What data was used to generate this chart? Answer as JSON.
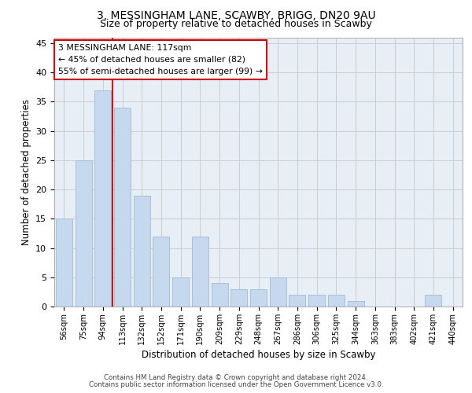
{
  "title1": "3, MESSINGHAM LANE, SCAWBY, BRIGG, DN20 9AU",
  "title2": "Size of property relative to detached houses in Scawby",
  "xlabel": "Distribution of detached houses by size in Scawby",
  "ylabel": "Number of detached properties",
  "categories": [
    "56sqm",
    "75sqm",
    "94sqm",
    "113sqm",
    "132sqm",
    "152sqm",
    "171sqm",
    "190sqm",
    "209sqm",
    "229sqm",
    "248sqm",
    "267sqm",
    "286sqm",
    "306sqm",
    "325sqm",
    "344sqm",
    "363sqm",
    "383sqm",
    "402sqm",
    "421sqm",
    "440sqm"
  ],
  "values": [
    15,
    25,
    37,
    34,
    19,
    12,
    5,
    12,
    4,
    3,
    3,
    5,
    2,
    2,
    2,
    1,
    0,
    0,
    0,
    2,
    0
  ],
  "bar_color": "#c5d8ed",
  "bar_edge_color": "#a8c0d6",
  "grid_color": "#cccccc",
  "background_color": "#e8eef6",
  "vline_x_index": 3,
  "vline_color": "#cc0000",
  "annotation_box_text": "3 MESSINGHAM LANE: 117sqm\n← 45% of detached houses are smaller (82)\n55% of semi-detached houses are larger (99) →",
  "footer1": "Contains HM Land Registry data © Crown copyright and database right 2024.",
  "footer2": "Contains public sector information licensed under the Open Government Licence v3.0.",
  "ylim": [
    0,
    46
  ],
  "yticks": [
    0,
    5,
    10,
    15,
    20,
    25,
    30,
    35,
    40,
    45
  ]
}
